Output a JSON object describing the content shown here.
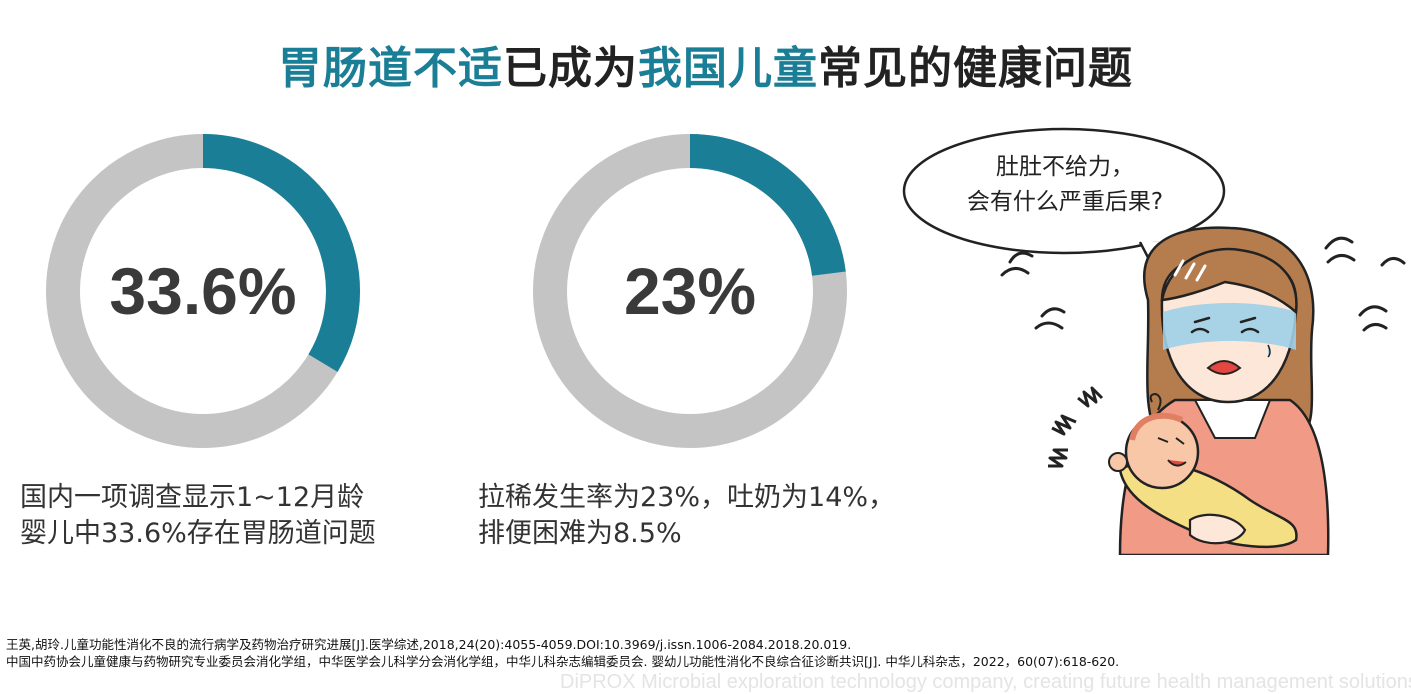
{
  "title": {
    "part1": "胃肠道不适",
    "part2": "已成为",
    "part3": "我国儿童",
    "part4": "常见的健康问题"
  },
  "stats": [
    {
      "value": "33.6%",
      "fraction": 0.336,
      "caption_line1": "国内一项调查显示1~12月龄",
      "caption_line2": "婴儿中33.6%存在胃肠道问题"
    },
    {
      "value": "23%",
      "fraction": 0.23,
      "caption_line1": "拉稀发生率为23%，吐奶为14%，",
      "caption_line2": "排便困难为8.5%"
    }
  ],
  "bubble": {
    "line1": "肚肚不给力，",
    "line2": "会有什么严重后果?"
  },
  "references": {
    "line1": "王英,胡玲.儿童功能性消化不良的流行病学及药物治疗研究进展[J].医学综述,2018,24(20):4055-4059.DOI:10.3969/j.issn.1006-2084.2018.20.019.",
    "line2": "中国中药协会儿童健康与药物研究专业委员会消化学组，中华医学会儿科学分会消化学组，中华儿科杂志编辑委员会. 婴幼儿功能性消化不良综合征诊断共识[J]. 中华儿科杂志，2022，60(07):618-620."
  },
  "footer_tagline": "DiPROX Microbial exploration technology company, creating future health management solutions",
  "colors": {
    "accent": "#1a7e96",
    "track": "#c4c4c4",
    "text": "#333333"
  }
}
